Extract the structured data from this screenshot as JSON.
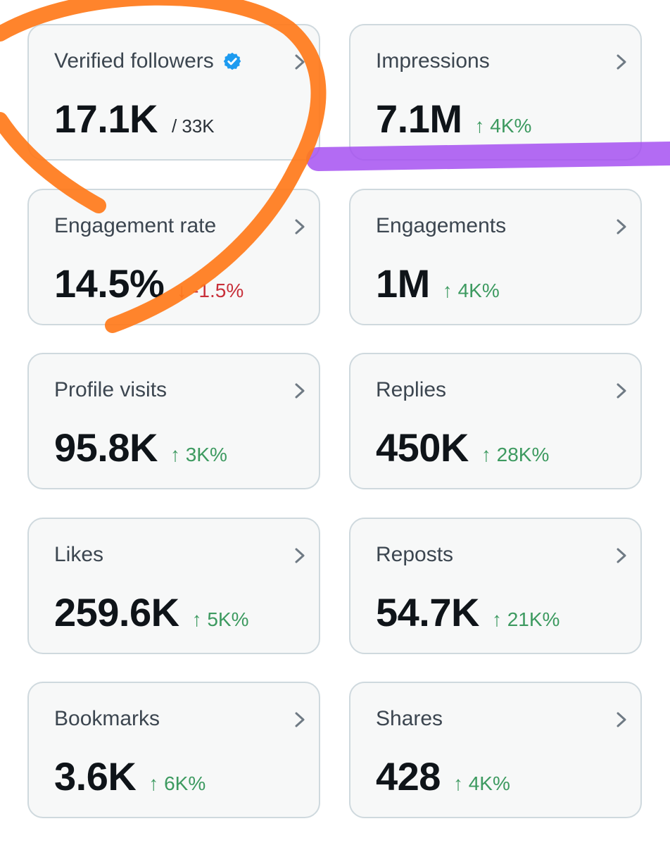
{
  "colors": {
    "up": "#3d9a60",
    "down": "#c8303a",
    "verified": "#1d9bf0",
    "annotation_orange": "#ff7a1a",
    "annotation_purple": "#a24bf0"
  },
  "cards": [
    {
      "label": "Verified followers",
      "value": "17.1K",
      "sub": "/ 33K",
      "icon": "verified-badge-icon"
    },
    {
      "label": "Impressions",
      "value": "7.1M",
      "change": "↑ 4K%",
      "direction": "up"
    },
    {
      "label": "Engagement rate",
      "value": "14.5%",
      "change": "↓ -1.5%",
      "direction": "down"
    },
    {
      "label": "Engagements",
      "value": "1M",
      "change": "↑ 4K%",
      "direction": "up"
    },
    {
      "label": "Profile visits",
      "value": "95.8K",
      "change": "↑ 3K%",
      "direction": "up"
    },
    {
      "label": "Replies",
      "value": "450K",
      "change": "↑ 28K%",
      "direction": "up"
    },
    {
      "label": "Likes",
      "value": "259.6K",
      "change": "↑ 5K%",
      "direction": "up"
    },
    {
      "label": "Reposts",
      "value": "54.7K",
      "change": "↑ 21K%",
      "direction": "up"
    },
    {
      "label": "Bookmarks",
      "value": "3.6K",
      "change": "↑ 6K%",
      "direction": "up"
    },
    {
      "label": "Shares",
      "value": "428",
      "change": "↑ 4K%",
      "direction": "up"
    }
  ],
  "annotations": [
    {
      "type": "circle-scribble",
      "color": "orange",
      "target": "Verified followers"
    },
    {
      "type": "highlight-stroke",
      "color": "purple",
      "target": "Impressions"
    }
  ]
}
